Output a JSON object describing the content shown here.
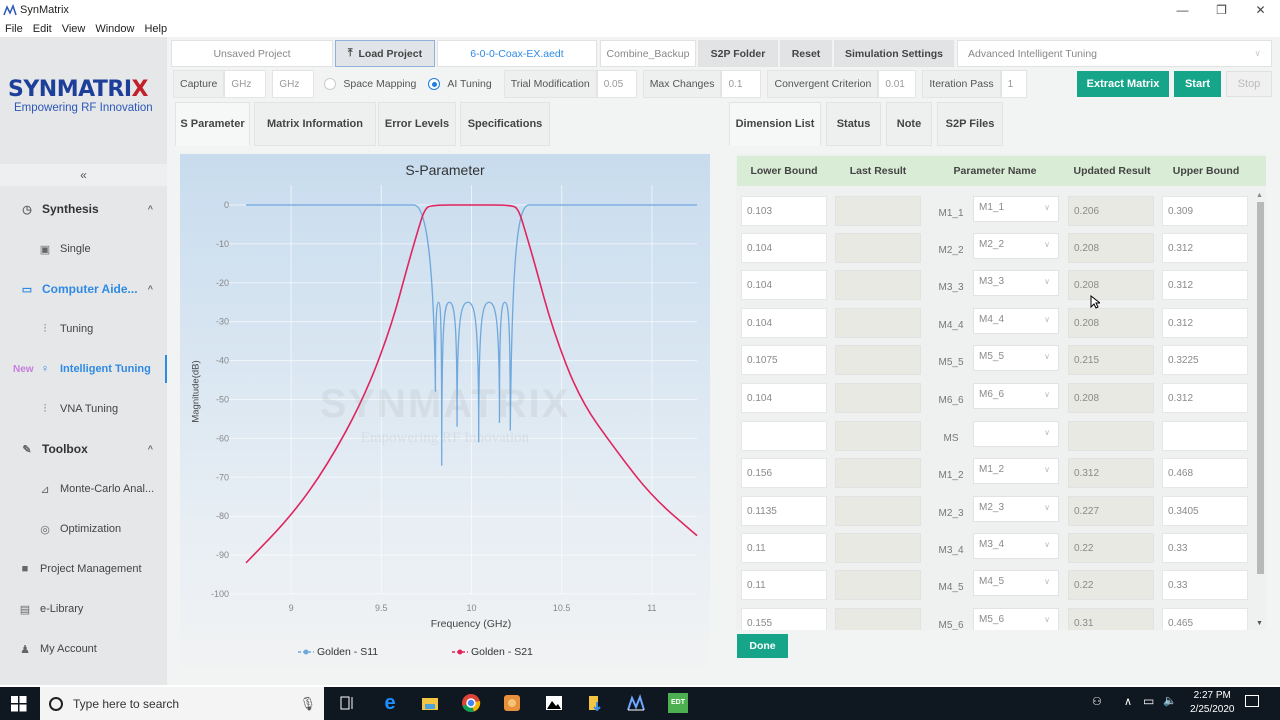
{
  "window": {
    "title": "SynMatrix",
    "controls": {
      "minimize": "—",
      "maximize": "❐",
      "close": "✕"
    }
  },
  "menu": [
    "File",
    "Edit",
    "View",
    "Window",
    "Help"
  ],
  "logo": {
    "brand_a": "SYNMATRI",
    "brand_b": "X",
    "tagline": "Empowering RF Innovation"
  },
  "sidebar": {
    "collapse": "«",
    "items": [
      {
        "label": "Synthesis",
        "icon": "gauge-icon",
        "type": "group",
        "chevron": "^"
      },
      {
        "label": "Single",
        "icon": "chip-icon",
        "type": "item"
      },
      {
        "label": "Computer Aide...",
        "icon": "monitor-icon",
        "type": "group",
        "chevron": "^"
      },
      {
        "label": "Tuning",
        "icon": "sliders-icon",
        "type": "item"
      },
      {
        "label": "Intelligent Tuning",
        "icon": "bulb-icon",
        "type": "item",
        "badge": "New"
      },
      {
        "label": "VNA Tuning",
        "icon": "sliders-icon",
        "type": "item"
      },
      {
        "label": "Toolbox",
        "icon": "wrench-icon",
        "type": "group",
        "chevron": "^"
      },
      {
        "label": "Monte-Carlo Anal...",
        "icon": "chart-icon",
        "type": "item"
      },
      {
        "label": "Optimization",
        "icon": "target-icon",
        "type": "item"
      },
      {
        "label": "Project Management",
        "icon": "folder-icon",
        "type": "top"
      },
      {
        "label": "e-Library",
        "icon": "book-icon",
        "type": "top"
      },
      {
        "label": "My Account",
        "icon": "user-icon",
        "type": "top"
      }
    ]
  },
  "toolbar": {
    "project": "Unsaved Project",
    "load_project": "Load Project",
    "load_icon": "⤒",
    "file_name": "6-0-0-Coax-EX.aedt",
    "combine_backup": "Combine_Backup",
    "s2p_folder": "S2P Folder",
    "reset": "Reset",
    "simulation_settings": "Simulation Settings",
    "mode_select": "Advanced Intelligent Tuning",
    "mode_chevron": "∨"
  },
  "controls": {
    "capture_label": "Capture",
    "capture_from_placeholder": "GHz",
    "capture_to_placeholder": "GHz",
    "space_mapping": "Space Mapping",
    "ai_tuning": "AI Tuning",
    "trial_modification_label": "Trial Modification",
    "trial_modification": "0.05",
    "max_changes_label": "Max Changes",
    "max_changes": "0.1",
    "convergent_label": "Convergent Criterion",
    "convergent": "0.01",
    "iteration_label": "Iteration Pass",
    "iteration": "1",
    "extract_matrix": "Extract Matrix",
    "start": "Start",
    "stop": "Stop"
  },
  "left_tabs": [
    "S Parameter",
    "Matrix Information",
    "Error Levels",
    "Specifications"
  ],
  "right_tabs": [
    "Dimension List",
    "Status",
    "Note",
    "S2P Files"
  ],
  "chart": {
    "title": "S-Parameter",
    "xlabel": "Frequency (GHz)",
    "ylabel": "Magnitude(dB)",
    "watermark": "SYNMATRIX",
    "watermark_sub": "Empowering RF Innovation",
    "legend": [
      {
        "name": "Golden - S11",
        "color": "#6fa8dc"
      },
      {
        "name": "Golden - S21",
        "color": "#e0245e"
      }
    ]
  },
  "chart_data": {
    "type": "line",
    "title": "S-Parameter",
    "xlabel": "Frequency (GHz)",
    "ylabel": "Magnitude(dB)",
    "xlim": [
      8.75,
      11.25
    ],
    "ylim": [
      -100,
      0
    ],
    "xticks": [
      9,
      9.5,
      10,
      10.5,
      11
    ],
    "yticks": [
      0,
      -10,
      -20,
      -30,
      -40,
      -50,
      -60,
      -70,
      -80,
      -90,
      -100
    ],
    "grid": true,
    "legend_position": "bottom",
    "series": [
      {
        "name": "Golden - S11",
        "color": "#6fa8dc",
        "x": [
          8.75,
          9.5,
          9.6,
          9.68,
          9.75,
          9.78,
          9.8,
          9.81,
          9.82,
          9.83,
          9.86,
          9.88,
          9.91,
          9.94,
          10.0,
          10.06,
          10.12,
          10.15,
          10.18,
          10.21,
          10.24,
          10.25,
          10.27,
          10.3,
          10.34,
          10.5,
          11.25
        ],
        "values": [
          0,
          0,
          -0.2,
          -1,
          -10,
          -25,
          -48,
          -26,
          -25,
          -28,
          -67,
          -26,
          -25,
          -57,
          -25,
          -61,
          -25,
          -56,
          -25,
          -26,
          -58,
          -25,
          -10,
          -1,
          -0.2,
          0,
          0
        ]
      },
      {
        "name": "Golden - S21",
        "color": "#e0245e",
        "x": [
          8.75,
          9.0,
          9.2,
          9.4,
          9.55,
          9.65,
          9.7,
          9.74,
          9.78,
          10.0,
          10.22,
          10.26,
          10.3,
          10.35,
          10.45,
          10.6,
          10.8,
          11.0,
          11.25
        ],
        "values": [
          -92,
          -80,
          -67,
          -50,
          -32,
          -15,
          -7,
          -1,
          0,
          0,
          0,
          -1,
          -7,
          -15,
          -32,
          -50,
          -63,
          -75,
          -85
        ]
      }
    ]
  },
  "dimension_list": {
    "headers": [
      "Lower Bound",
      "Last Result",
      "Parameter Name",
      "Updated Result",
      "Upper Bound"
    ],
    "rows": [
      {
        "lower": "0.103",
        "last": "",
        "param": "M1_1",
        "select": "M1_1",
        "updated": "0.206",
        "upper": "0.309"
      },
      {
        "lower": "0.104",
        "last": "",
        "param": "M2_2",
        "select": "M2_2",
        "updated": "0.208",
        "upper": "0.312"
      },
      {
        "lower": "0.104",
        "last": "",
        "param": "M3_3",
        "select": "M3_3",
        "updated": "0.208",
        "upper": "0.312"
      },
      {
        "lower": "0.104",
        "last": "",
        "param": "M4_4",
        "select": "M4_4",
        "updated": "0.208",
        "upper": "0.312"
      },
      {
        "lower": "0.1075",
        "last": "",
        "param": "M5_5",
        "select": "M5_5",
        "updated": "0.215",
        "upper": "0.3225"
      },
      {
        "lower": "0.104",
        "last": "",
        "param": "M6_6",
        "select": "M6_6",
        "updated": "0.208",
        "upper": "0.312"
      },
      {
        "lower": "",
        "last": "",
        "param": "MS",
        "select": "",
        "updated": "",
        "upper": ""
      },
      {
        "lower": "0.156",
        "last": "",
        "param": "M1_2",
        "select": "M1_2",
        "updated": "0.312",
        "upper": "0.468"
      },
      {
        "lower": "0.1135",
        "last": "",
        "param": "M2_3",
        "select": "M2_3",
        "updated": "0.227",
        "upper": "0.3405"
      },
      {
        "lower": "0.11",
        "last": "",
        "param": "M3_4",
        "select": "M3_4",
        "updated": "0.22",
        "upper": "0.33"
      },
      {
        "lower": "0.11",
        "last": "",
        "param": "M4_5",
        "select": "M4_5",
        "updated": "0.22",
        "upper": "0.33"
      },
      {
        "lower": "0.155",
        "last": "",
        "param": "M5_6",
        "select": "M5_6",
        "updated": "0.31",
        "upper": "0.465"
      }
    ],
    "done": "Done"
  },
  "taskbar": {
    "search_placeholder": "Type here to search",
    "time": "2:27 PM",
    "date": "2/25/2020",
    "apps": [
      "task-view",
      "edge",
      "file-explorer",
      "chrome",
      "app-orange",
      "photos",
      "file-explorer-download",
      "synmatrix",
      "edt"
    ]
  }
}
